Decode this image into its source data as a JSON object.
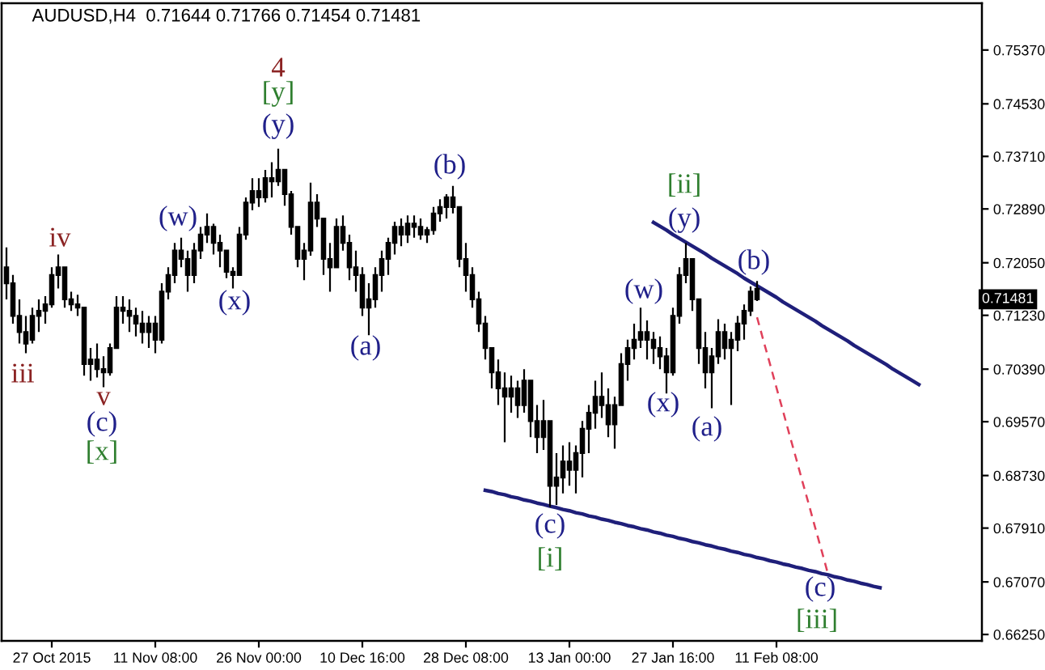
{
  "chart_data": {
    "type": "candlestick",
    "title": "AUDUSD,H4  0.71644 0.71766 0.71454 0.71481",
    "color": "#000000",
    "categories": [
      null,
      null,
      null,
      null,
      null,
      null,
      null,
      "27 Oct 2015",
      null,
      null,
      null,
      null,
      null,
      null,
      null,
      null,
      null,
      null,
      null,
      null,
      null,
      null,
      null,
      "11 Nov 08:00",
      null,
      null,
      null,
      null,
      null,
      null,
      null,
      null,
      null,
      null,
      null,
      null,
      null,
      null,
      null,
      "26 Nov 00:00",
      null,
      null,
      null,
      null,
      null,
      null,
      null,
      null,
      null,
      null,
      null,
      null,
      null,
      null,
      null,
      "10 Dec 16:00",
      null,
      null,
      null,
      null,
      null,
      null,
      null,
      null,
      null,
      null,
      null,
      null,
      null,
      null,
      null,
      "28 Dec 08:00",
      null,
      null,
      null,
      null,
      null,
      null,
      null,
      null,
      null,
      null,
      null,
      null,
      null,
      null,
      null,
      "13 Jan 00:00",
      null,
      null,
      null,
      null,
      null,
      null,
      null,
      null,
      null,
      null,
      null,
      null,
      null,
      null,
      null,
      "27 Jan 16:00",
      null,
      null,
      null,
      null,
      null,
      null,
      null,
      null,
      null,
      null,
      null,
      null,
      null,
      null,
      null,
      "11 Feb 08:00",
      null,
      null,
      null,
      null,
      null,
      null,
      null,
      null,
      null,
      null,
      null,
      null,
      null,
      null,
      null,
      null,
      null,
      null,
      null,
      null,
      null,
      null,
      null,
      null,
      null,
      null,
      null,
      null,
      null,
      null,
      null
    ],
    "ohlc": [
      [
        0.7198,
        0.7229,
        0.7148,
        0.7173
      ],
      [
        0.7173,
        0.7186,
        0.711,
        0.7122
      ],
      [
        0.7122,
        0.7148,
        0.7079,
        0.7097
      ],
      [
        0.7097,
        0.7122,
        0.7064,
        0.7079
      ],
      [
        0.7085,
        0.7135,
        0.7079,
        0.7122
      ],
      [
        0.7122,
        0.7148,
        0.7097,
        0.713
      ],
      [
        0.713,
        0.7153,
        0.711,
        0.714
      ],
      [
        0.714,
        0.7198,
        0.7135,
        0.7186
      ],
      [
        0.7186,
        0.7218,
        0.7165,
        0.7198
      ],
      [
        0.7198,
        0.7198,
        0.7135,
        0.7148
      ],
      [
        0.7148,
        0.716,
        0.713,
        0.714
      ],
      [
        0.714,
        0.7155,
        0.7122,
        0.7135
      ],
      [
        0.7135,
        0.7135,
        0.7029,
        0.7047
      ],
      [
        0.7047,
        0.7072,
        0.7021,
        0.7054
      ],
      [
        0.7054,
        0.7079,
        0.7026,
        0.7039
      ],
      [
        0.7039,
        0.7059,
        0.7011,
        0.7034
      ],
      [
        0.7034,
        0.7079,
        0.7029,
        0.7072
      ],
      [
        0.7072,
        0.7153,
        0.7072,
        0.7135
      ],
      [
        0.7135,
        0.7153,
        0.711,
        0.713
      ],
      [
        0.713,
        0.7148,
        0.7097,
        0.7122
      ],
      [
        0.7122,
        0.7135,
        0.709,
        0.711
      ],
      [
        0.711,
        0.713,
        0.7079,
        0.7097
      ],
      [
        0.7097,
        0.7122,
        0.7072,
        0.711
      ],
      [
        0.711,
        0.7122,
        0.7064,
        0.7085
      ],
      [
        0.7085,
        0.7173,
        0.7079,
        0.716
      ],
      [
        0.716,
        0.7198,
        0.7148,
        0.7186
      ],
      [
        0.7186,
        0.7236,
        0.7173,
        0.7224
      ],
      [
        0.7224,
        0.7244,
        0.7198,
        0.7211
      ],
      [
        0.7211,
        0.7224,
        0.716,
        0.7186
      ],
      [
        0.7186,
        0.7236,
        0.7173,
        0.7224
      ],
      [
        0.7224,
        0.7261,
        0.7211,
        0.7249
      ],
      [
        0.7249,
        0.7282,
        0.7236,
        0.7261
      ],
      [
        0.7261,
        0.7266,
        0.7218,
        0.7236
      ],
      [
        0.7236,
        0.7249,
        0.7198,
        0.7224
      ],
      [
        0.7224,
        0.7224,
        0.7181,
        0.7191
      ],
      [
        0.7191,
        0.7198,
        0.7165,
        0.7186
      ],
      [
        0.7186,
        0.7261,
        0.7186,
        0.7249
      ],
      [
        0.7249,
        0.7307,
        0.7241,
        0.7299
      ],
      [
        0.7299,
        0.7337,
        0.7287,
        0.7317
      ],
      [
        0.7317,
        0.7337,
        0.7292,
        0.7307
      ],
      [
        0.7307,
        0.735,
        0.7299,
        0.7337
      ],
      [
        0.7337,
        0.7362,
        0.7307,
        0.7332
      ],
      [
        0.7332,
        0.7383,
        0.7325,
        0.735
      ],
      [
        0.735,
        0.735,
        0.7294,
        0.7312
      ],
      [
        0.7312,
        0.7317,
        0.7249,
        0.7261
      ],
      [
        0.7261,
        0.7261,
        0.7198,
        0.7211
      ],
      [
        0.7211,
        0.7236,
        0.7178,
        0.7224
      ],
      [
        0.7224,
        0.733,
        0.7216,
        0.7299
      ],
      [
        0.7299,
        0.7312,
        0.7261,
        0.7274
      ],
      [
        0.7274,
        0.7274,
        0.7186,
        0.7211
      ],
      [
        0.7211,
        0.7236,
        0.716,
        0.7198
      ],
      [
        0.7198,
        0.7274,
        0.7198,
        0.7261
      ],
      [
        0.7261,
        0.7279,
        0.7224,
        0.7236
      ],
      [
        0.7236,
        0.7249,
        0.7178,
        0.7198
      ],
      [
        0.7198,
        0.7224,
        0.716,
        0.7186
      ],
      [
        0.7186,
        0.7198,
        0.7122,
        0.7135
      ],
      [
        0.7135,
        0.7173,
        0.7092,
        0.7148
      ],
      [
        0.7148,
        0.7198,
        0.7135,
        0.7186
      ],
      [
        0.7186,
        0.7224,
        0.716,
        0.7211
      ],
      [
        0.7211,
        0.7244,
        0.7186,
        0.7236
      ],
      [
        0.7236,
        0.7269,
        0.7218,
        0.7261
      ],
      [
        0.7261,
        0.7274,
        0.7231,
        0.7249
      ],
      [
        0.7249,
        0.7279,
        0.7236,
        0.7266
      ],
      [
        0.7266,
        0.7279,
        0.7244,
        0.7261
      ],
      [
        0.7261,
        0.7274,
        0.7241,
        0.7249
      ],
      [
        0.7249,
        0.7261,
        0.7236,
        0.7256
      ],
      [
        0.7256,
        0.7292,
        0.7249,
        0.7282
      ],
      [
        0.7282,
        0.7304,
        0.7269,
        0.7292
      ],
      [
        0.7292,
        0.7312,
        0.7274,
        0.7307
      ],
      [
        0.7307,
        0.7325,
        0.7282,
        0.7292
      ],
      [
        0.7292,
        0.7292,
        0.7198,
        0.7211
      ],
      [
        0.7211,
        0.7236,
        0.716,
        0.7186
      ],
      [
        0.7186,
        0.7198,
        0.7135,
        0.7148
      ],
      [
        0.7148,
        0.716,
        0.7097,
        0.711
      ],
      [
        0.711,
        0.7122,
        0.7054,
        0.7072
      ],
      [
        0.7072,
        0.7072,
        0.7009,
        0.7034
      ],
      [
        0.7034,
        0.7054,
        0.6983,
        0.7009
      ],
      [
        0.7009,
        0.7034,
        0.6925,
        0.6996
      ],
      [
        0.6996,
        0.7029,
        0.6971,
        0.7009
      ],
      [
        0.7009,
        0.7021,
        0.6963,
        0.6983
      ],
      [
        0.6983,
        0.7039,
        0.6971,
        0.7021
      ],
      [
        0.7021,
        0.7021,
        0.6933,
        0.6958
      ],
      [
        0.6958,
        0.6983,
        0.6908,
        0.6933
      ],
      [
        0.6933,
        0.6991,
        0.6913,
        0.6958
      ],
      [
        0.6958,
        0.6958,
        0.6824,
        0.6857
      ],
      [
        0.6857,
        0.6908,
        0.6827,
        0.687
      ],
      [
        0.687,
        0.692,
        0.6845,
        0.6895
      ],
      [
        0.6895,
        0.6925,
        0.6857,
        0.6882
      ],
      [
        0.6882,
        0.692,
        0.6845,
        0.6908
      ],
      [
        0.6908,
        0.6958,
        0.687,
        0.6946
      ],
      [
        0.6946,
        0.6983,
        0.6908,
        0.6971
      ],
      [
        0.6971,
        0.7021,
        0.6946,
        0.6996
      ],
      [
        0.6996,
        0.7034,
        0.6963,
        0.6983
      ],
      [
        0.6983,
        0.7009,
        0.6933,
        0.6953
      ],
      [
        0.6953,
        0.6996,
        0.6915,
        0.6983
      ],
      [
        0.6983,
        0.7064,
        0.6983,
        0.7047
      ],
      [
        0.7047,
        0.7085,
        0.7021,
        0.7072
      ],
      [
        0.7072,
        0.711,
        0.7054,
        0.7085
      ],
      [
        0.7085,
        0.7135,
        0.7072,
        0.7097
      ],
      [
        0.7097,
        0.7115,
        0.7054,
        0.7085
      ],
      [
        0.7085,
        0.7097,
        0.7047,
        0.7072
      ],
      [
        0.7072,
        0.709,
        0.7039,
        0.7059
      ],
      [
        0.7059,
        0.7072,
        0.7001,
        0.7034
      ],
      [
        0.7034,
        0.7135,
        0.7029,
        0.7122
      ],
      [
        0.7122,
        0.7198,
        0.711,
        0.7186
      ],
      [
        0.7186,
        0.7236,
        0.7173,
        0.7211
      ],
      [
        0.7211,
        0.7211,
        0.713,
        0.7148
      ],
      [
        0.7148,
        0.7148,
        0.7047,
        0.7072
      ],
      [
        0.7072,
        0.7097,
        0.7009,
        0.7034
      ],
      [
        0.7034,
        0.7072,
        0.6978,
        0.7059
      ],
      [
        0.7059,
        0.7117,
        0.7047,
        0.7097
      ],
      [
        0.7097,
        0.711,
        0.7054,
        0.7072
      ],
      [
        0.7072,
        0.7097,
        0.6983,
        0.7085
      ],
      [
        0.7085,
        0.7122,
        0.7067,
        0.711
      ],
      [
        0.711,
        0.714,
        0.7085,
        0.713
      ],
      [
        0.713,
        0.7168,
        0.7122,
        0.716
      ],
      [
        0.71644,
        0.71766,
        0.71454,
        0.71481
      ],
      null,
      null,
      null,
      null,
      null,
      null,
      null,
      null,
      null,
      null,
      null,
      null,
      null,
      null,
      null,
      null,
      null,
      null,
      null,
      null,
      null,
      null,
      null,
      null,
      null,
      null,
      null,
      null,
      null,
      null,
      null,
      null,
      null,
      null
    ],
    "series": [
      {
        "type": "line",
        "color": "#1f1f7a",
        "values": [
          null,
          null,
          null,
          null,
          null,
          null,
          null,
          null,
          null,
          null,
          null,
          null,
          null,
          null,
          null,
          null,
          null,
          null,
          null,
          null,
          null,
          null,
          null,
          null,
          null,
          null,
          null,
          null,
          null,
          null,
          null,
          null,
          null,
          null,
          null,
          null,
          null,
          null,
          null,
          null,
          null,
          null,
          null,
          null,
          null,
          null,
          null,
          null,
          null,
          null,
          null,
          null,
          null,
          null,
          null,
          null,
          null,
          null,
          null,
          null,
          null,
          null,
          null,
          null,
          null,
          null,
          null,
          null,
          null,
          null,
          null,
          null,
          null,
          null,
          null,
          null,
          null,
          null,
          null,
          null,
          null,
          null,
          null,
          null,
          null,
          null,
          null,
          null,
          null,
          null,
          null,
          null,
          null,
          null,
          null,
          null,
          null,
          null,
          null,
          null,
          0.7268,
          0.7262,
          0.7256,
          0.7249,
          0.7243,
          0.7237,
          0.7231,
          0.7225,
          0.7219,
          0.7212,
          0.7206,
          0.72,
          0.7194,
          0.7188,
          0.7181,
          0.7175,
          0.7169,
          0.7163,
          0.7157,
          0.7151,
          0.7144,
          0.7138,
          0.7132,
          0.7126,
          0.712,
          0.7114,
          0.7107,
          0.7101,
          0.7095,
          0.7089,
          0.7083,
          0.7076,
          0.707,
          0.7064,
          0.7058,
          0.7052,
          0.7046,
          0.7039,
          0.7033,
          0.7027,
          0.7021,
          0.7015,
          null,
          null,
          null,
          null,
          null,
          null,
          null,
          null,
          null
        ]
      },
      {
        "type": "line",
        "color": "#1f1f7a",
        "values": [
          null,
          null,
          null,
          null,
          null,
          null,
          null,
          null,
          null,
          null,
          null,
          null,
          null,
          null,
          null,
          null,
          null,
          null,
          null,
          null,
          null,
          null,
          null,
          null,
          null,
          null,
          null,
          null,
          null,
          null,
          null,
          null,
          null,
          null,
          null,
          null,
          null,
          null,
          null,
          null,
          null,
          null,
          null,
          null,
          null,
          null,
          null,
          null,
          null,
          null,
          null,
          null,
          null,
          null,
          null,
          null,
          null,
          null,
          null,
          null,
          null,
          null,
          null,
          null,
          null,
          null,
          null,
          null,
          null,
          null,
          null,
          null,
          null,
          null,
          0.685,
          0.6848,
          0.6845,
          0.6843,
          0.684,
          0.6838,
          0.6835,
          0.6833,
          0.683,
          0.6828,
          0.6825,
          0.6823,
          0.682,
          0.6818,
          0.6815,
          0.6813,
          0.681,
          0.6808,
          0.6805,
          0.6803,
          0.68,
          0.6798,
          0.6795,
          0.6793,
          0.679,
          0.6788,
          0.6785,
          0.6783,
          0.678,
          0.6778,
          0.6775,
          0.6773,
          0.677,
          0.6768,
          0.6765,
          0.6763,
          0.676,
          0.6758,
          0.6755,
          0.6753,
          0.675,
          0.6748,
          0.6745,
          0.6743,
          0.674,
          0.6738,
          0.6735,
          0.6733,
          0.673,
          0.6728,
          0.6725,
          0.6723,
          0.672,
          0.6718,
          0.6715,
          0.6713,
          0.671,
          0.6708,
          0.6705,
          0.6703,
          0.67,
          0.6698,
          null,
          null,
          null,
          null,
          null,
          null,
          null,
          null,
          null,
          null,
          null,
          null,
          null,
          null,
          null
        ]
      },
      {
        "type": "line",
        "color": "#e0405a",
        "line_style": "dashed",
        "values": [
          null,
          null,
          null,
          null,
          null,
          null,
          null,
          null,
          null,
          null,
          null,
          null,
          null,
          null,
          null,
          null,
          null,
          null,
          null,
          null,
          null,
          null,
          null,
          null,
          null,
          null,
          null,
          null,
          null,
          null,
          null,
          null,
          null,
          null,
          null,
          null,
          null,
          null,
          null,
          null,
          null,
          null,
          null,
          null,
          null,
          null,
          null,
          null,
          null,
          null,
          null,
          null,
          null,
          null,
          null,
          null,
          null,
          null,
          null,
          null,
          null,
          null,
          null,
          null,
          null,
          null,
          null,
          null,
          null,
          null,
          null,
          null,
          null,
          null,
          null,
          null,
          null,
          null,
          null,
          null,
          null,
          null,
          null,
          null,
          null,
          null,
          null,
          null,
          null,
          null,
          null,
          null,
          null,
          null,
          null,
          null,
          null,
          null,
          null,
          null,
          null,
          null,
          null,
          null,
          null,
          null,
          null,
          null,
          null,
          null,
          null,
          null,
          null,
          null,
          null,
          null,
          0.712,
          0.7083,
          0.7047,
          0.701,
          0.6974,
          0.6937,
          0.6901,
          0.6864,
          0.6828,
          0.6791,
          0.6755,
          0.6718,
          null,
          null,
          null,
          null,
          null,
          null,
          null,
          null,
          null,
          null,
          null,
          null,
          null,
          null,
          null,
          null,
          null,
          null,
          null,
          null,
          null,
          null,
          null
        ]
      }
    ],
    "ylim": [
      0.6615,
      0.761
    ],
    "yticks": [
      {
        "value": 0.7537,
        "label": "0.75370"
      },
      {
        "value": 0.7453,
        "label": "0.74530"
      },
      {
        "value": 0.7371,
        "label": "0.73710"
      },
      {
        "value": 0.7289,
        "label": "0.72890"
      },
      {
        "value": 0.7205,
        "label": "0.72050"
      },
      {
        "value": 0.7123,
        "label": "0.71230"
      },
      {
        "value": 0.7039,
        "label": "0.70390"
      },
      {
        "value": 0.6957,
        "label": "0.69570"
      },
      {
        "value": 0.6873,
        "label": "0.68730"
      },
      {
        "value": 0.6791,
        "label": "0.67910"
      },
      {
        "value": 0.6707,
        "label": "0.67070"
      },
      {
        "value": 0.6625,
        "label": "0.66250"
      }
    ],
    "annotations": [
      "4",
      "[y]",
      "(y)",
      "(w)",
      "(x)",
      "iv",
      "iii",
      "v",
      "(c)",
      "[x]",
      "(a)",
      "(b)",
      "(c)",
      "[i]",
      "[ii]",
      "(y)",
      "(w)",
      "(x)",
      "(a)",
      "(b)",
      "(c)",
      "[iii]",
      {
        "text": "0.71481",
        "y": 0.71481
      }
    ]
  }
}
